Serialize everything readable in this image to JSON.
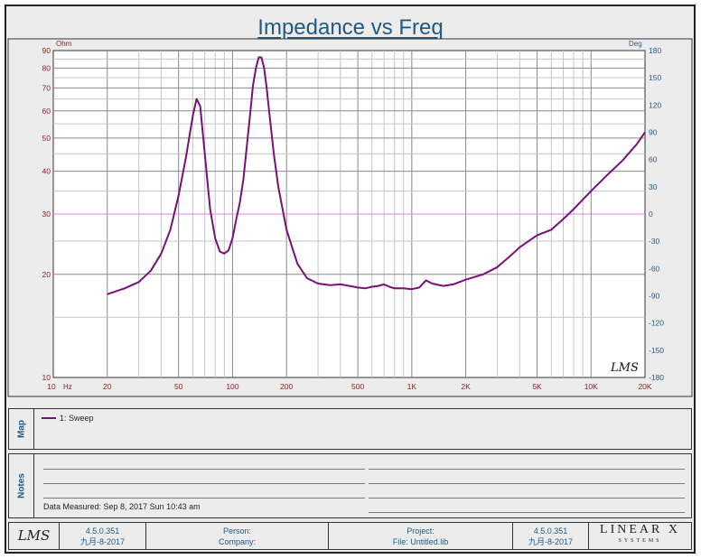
{
  "chart_data": {
    "type": "line",
    "title": "Impedance vs Freq",
    "xlabel": "Hz",
    "y_left_unit": "Ohm",
    "y_right_unit": "Deg",
    "x_scale": "log",
    "y_left_scale": "log",
    "xlim": [
      10,
      20000
    ],
    "ylim": [
      10,
      90
    ],
    "y_right_lim": [
      -180,
      180
    ],
    "x_tick_labels": [
      "10",
      "20",
      "50",
      "100",
      "200",
      "500",
      "1K",
      "2K",
      "5K",
      "10K",
      "20K"
    ],
    "x_tick_values": [
      10,
      20,
      50,
      100,
      200,
      500,
      1000,
      2000,
      5000,
      10000,
      20000
    ],
    "y_left_ticks": [
      10,
      20,
      30,
      40,
      50,
      60,
      70,
      80,
      90
    ],
    "y_right_ticks": [
      -180,
      -150,
      -120,
      -90,
      -60,
      -30,
      0,
      30,
      60,
      90,
      120,
      150,
      180
    ],
    "grid": true,
    "reference_line_y": 30,
    "series": [
      {
        "name": "1: Sweep",
        "color": "#7a0f7a",
        "x": [
          20,
          25,
          30,
          35,
          40,
          45,
          50,
          55,
          60,
          63,
          66,
          70,
          75,
          80,
          85,
          90,
          95,
          100,
          105,
          110,
          115,
          120,
          125,
          130,
          135,
          140,
          145,
          150,
          155,
          160,
          170,
          180,
          200,
          230,
          260,
          300,
          350,
          400,
          450,
          500,
          550,
          600,
          650,
          700,
          750,
          800,
          900,
          1000,
          1100,
          1200,
          1300,
          1500,
          1700,
          2000,
          2500,
          3000,
          3500,
          4000,
          5000,
          6000,
          7000,
          8000,
          10000,
          12000,
          15000,
          18000,
          20000
        ],
        "values": [
          17.5,
          18.2,
          19.0,
          20.5,
          23.0,
          27.0,
          34.0,
          44.0,
          58.0,
          65.0,
          62.0,
          45.0,
          31.0,
          25.5,
          23.3,
          23.0,
          23.5,
          25.5,
          29.0,
          32.5,
          38.0,
          47.0,
          58.0,
          71.0,
          80.0,
          86.0,
          86.0,
          80.0,
          70.0,
          60.0,
          45.0,
          36.0,
          27.0,
          21.5,
          19.5,
          18.8,
          18.6,
          18.7,
          18.5,
          18.3,
          18.2,
          18.4,
          18.5,
          18.7,
          18.4,
          18.2,
          18.2,
          18.1,
          18.3,
          19.2,
          18.8,
          18.5,
          18.7,
          19.3,
          20.0,
          21.0,
          22.5,
          24.0,
          26.0,
          27.0,
          29.0,
          31.0,
          35.0,
          38.5,
          43.0,
          48.0,
          52.0
        ]
      }
    ]
  },
  "legend": {
    "map_label": "Map",
    "entry": "1: Sweep"
  },
  "notes": {
    "label": "Notes",
    "measured": "Data Measured: Sep 8, 2017 Sun 10:43 am"
  },
  "footer": {
    "logo_text": "LMS",
    "version": "4.5.0.351",
    "date": "九月-8-2017",
    "person_label": "Person:",
    "company_label": "Company:",
    "project_label": "Project:",
    "file_label": "File: Untitled.lib",
    "version2": "4.5.0.351",
    "date2": "九月-8-2017",
    "brand_line1": "LINEAR X",
    "brand_line2": "SYSTEMS"
  },
  "watermark": "LMS"
}
